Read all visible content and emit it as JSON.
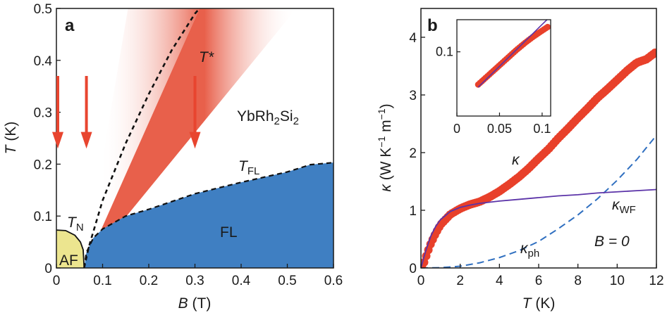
{
  "chart_data": [
    {
      "type": "area",
      "panel": "a",
      "xlabel": "B (T)",
      "ylabel": "T (K)",
      "xlim": [
        0,
        0.6
      ],
      "ylim": [
        0,
        0.5
      ],
      "xticks": [
        "0",
        "0.1",
        "0.2",
        "0.3",
        "0.4",
        "0.5",
        "0.6"
      ],
      "yticks": [
        "0",
        "0.1",
        "0.2",
        "0.3",
        "0.4",
        "0.5"
      ],
      "material": "YbRh2Si2",
      "regions": [
        {
          "name": "AF",
          "color": "#ece58f",
          "boundary": [
            [
              0,
              0.073
            ],
            [
              0.02,
              0.072
            ],
            [
              0.04,
              0.063
            ],
            [
              0.052,
              0.05
            ],
            [
              0.058,
              0.035
            ],
            [
              0.06,
              0.0
            ]
          ]
        },
        {
          "name": "FL",
          "color": "#3f7fc2",
          "boundary": [
            [
              0.06,
              0.0
            ],
            [
              0.065,
              0.03
            ],
            [
              0.08,
              0.058
            ],
            [
              0.1,
              0.075
            ],
            [
              0.15,
              0.1
            ],
            [
              0.2,
              0.113
            ],
            [
              0.3,
              0.143
            ],
            [
              0.4,
              0.165
            ],
            [
              0.5,
              0.185
            ],
            [
              0.55,
              0.199
            ],
            [
              0.6,
              0.203
            ]
          ]
        },
        {
          "name": "T*",
          "color": "#e8604b",
          "line": [
            [
              0.06,
              0.0
            ],
            [
              0.07,
              0.04
            ],
            [
              0.1,
              0.13
            ],
            [
              0.15,
              0.24
            ],
            [
              0.2,
              0.335
            ],
            [
              0.25,
              0.42
            ],
            [
              0.3,
              0.49
            ],
            [
              0.31,
              0.5
            ]
          ],
          "fan_left_top_B": 0.155,
          "fan_right_top_B": 0.52
        }
      ],
      "arrows_B": [
        0.0,
        0.065,
        0.3
      ],
      "labels": {
        "tstar": "T*",
        "tfl": "T",
        "tfl_sub": "FL",
        "tn": "T",
        "tn_sub": "N",
        "af": "AF",
        "fl": "FL",
        "material_main": "YbRh",
        "material_sub1": "2",
        "material_mid": "Si",
        "material_sub2": "2"
      }
    },
    {
      "type": "scatter",
      "panel": "b",
      "xlabel": "T (K)",
      "ylabel": "κ (W K−1 m−1)",
      "xlim": [
        0,
        12
      ],
      "ylim": [
        0,
        4.5
      ],
      "xticks": [
        "0",
        "2",
        "4",
        "6",
        "8",
        "10",
        "12"
      ],
      "yticks": [
        "0",
        "1",
        "2",
        "3",
        "4"
      ],
      "series": [
        {
          "name": "κ",
          "color": "#e8402a",
          "style": "markers",
          "x": [
            0.05,
            0.1,
            0.2,
            0.3,
            0.5,
            0.75,
            1.0,
            1.5,
            2.0,
            2.5,
            3.0,
            3.5,
            4.0,
            4.5,
            5.0,
            5.5,
            6.0,
            6.5,
            7.0,
            7.5,
            8.0,
            8.5,
            9.0,
            9.5,
            10.0,
            10.5,
            11.0,
            11.5,
            12.0
          ],
          "y": [
            0.02,
            0.05,
            0.13,
            0.24,
            0.42,
            0.6,
            0.75,
            0.93,
            1.03,
            1.1,
            1.15,
            1.23,
            1.33,
            1.45,
            1.58,
            1.73,
            1.9,
            2.06,
            2.25,
            2.42,
            2.6,
            2.77,
            2.95,
            3.1,
            3.26,
            3.42,
            3.56,
            3.62,
            3.75
          ]
        },
        {
          "name": "κWF",
          "color": "#5b33a8",
          "style": "line",
          "x": [
            0,
            0.1,
            0.25,
            0.5,
            0.75,
            1.0,
            1.5,
            2.0,
            2.5,
            3.0,
            3.5,
            4.0,
            5.0,
            6.0,
            7.0,
            8.0,
            9.0,
            10.0,
            11.0,
            12.0
          ],
          "y": [
            0,
            0.12,
            0.3,
            0.55,
            0.72,
            0.84,
            0.98,
            1.05,
            1.09,
            1.12,
            1.14,
            1.16,
            1.19,
            1.22,
            1.25,
            1.27,
            1.3,
            1.32,
            1.34,
            1.36
          ]
        },
        {
          "name": "κph",
          "color": "#2f6fc0",
          "style": "dashed",
          "x": [
            0,
            1,
            2,
            3,
            4,
            5,
            6,
            7,
            8,
            9,
            10,
            11,
            12
          ],
          "y": [
            0,
            0.005,
            0.03,
            0.09,
            0.18,
            0.3,
            0.46,
            0.68,
            0.92,
            1.2,
            1.52,
            1.88,
            2.3
          ]
        }
      ],
      "inset": {
        "xlim": [
          0,
          0.11
        ],
        "ylim": [
          0,
          0.15
        ],
        "xticks": [
          "0",
          "0.05",
          "0.1"
        ],
        "yticks": [
          "0.1"
        ],
        "series": [
          {
            "color": "#e8402a",
            "style": "markers",
            "x": [
              0.025,
              0.03,
              0.04,
              0.05,
              0.06,
              0.07,
              0.08,
              0.09,
              0.1,
              0.108
            ],
            "y": [
              0.049,
              0.055,
              0.067,
              0.079,
              0.091,
              0.103,
              0.114,
              0.124,
              0.133,
              0.14
            ]
          },
          {
            "color": "#5b33a8",
            "style": "line",
            "x": [
              0.025,
              0.108
            ],
            "y": [
              0.045,
              0.153
            ]
          }
        ]
      },
      "labels": {
        "kappa": "κ",
        "kwf": "κ",
        "kwf_sub": "WF",
        "kph": "κ",
        "kph_sub": "ph",
        "b0": "B = 0"
      }
    }
  ]
}
